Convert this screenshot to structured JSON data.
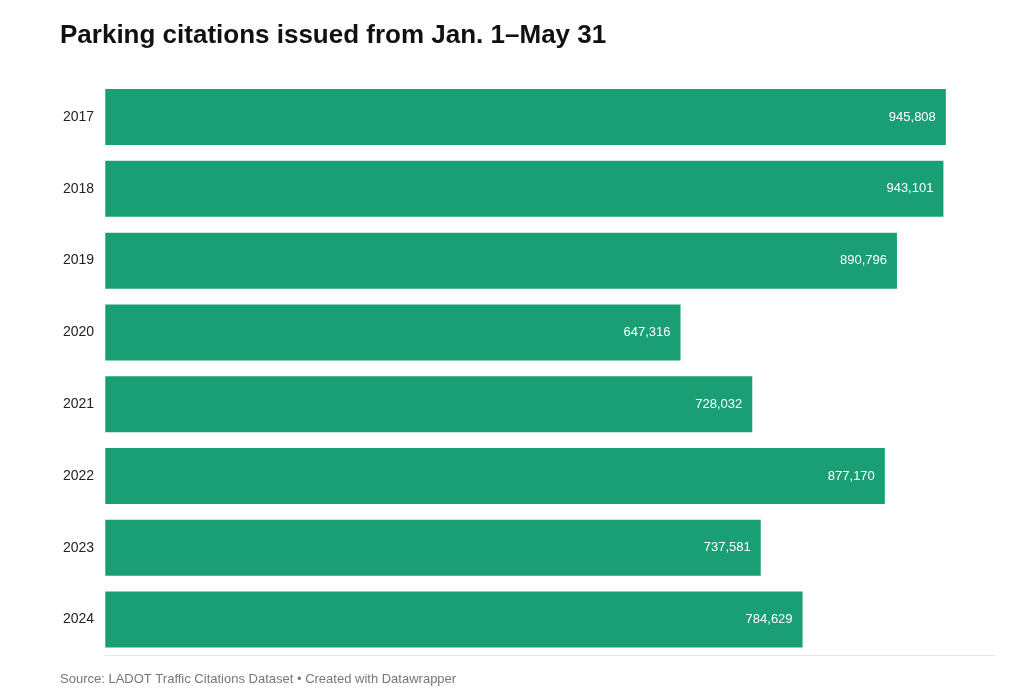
{
  "chart_data": {
    "type": "bar",
    "orientation": "horizontal",
    "title": "Parking citations issued from Jan. 1–May 31",
    "annotations": [
      "Source: LADOT Traffic Citations Dataset • Created with Datawrapper"
    ],
    "categories": [
      "2017",
      "2018",
      "2019",
      "2020",
      "2021",
      "2022",
      "2023",
      "2024"
    ],
    "values": [
      945808,
      943101,
      890796,
      647316,
      728032,
      877170,
      737581,
      784629
    ],
    "value_labels": [
      "945,808",
      "943,101",
      "890,796",
      "647,316",
      "728,032",
      "877,170",
      "737,581",
      "784,629"
    ],
    "data_labels": true,
    "color": "#1a9e74",
    "xlim": [
      0,
      1000000
    ],
    "grid": false,
    "tick_labels": "y"
  }
}
